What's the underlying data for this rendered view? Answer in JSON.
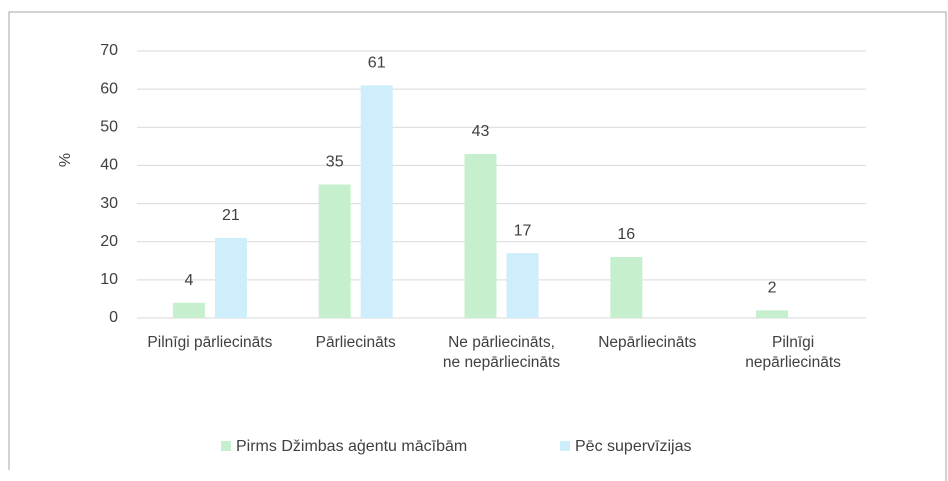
{
  "chart_data": {
    "type": "bar",
    "categories": [
      "Pilnīgi pārliecināts",
      "Pārliecināts",
      "Ne pārliecināts, ne nepārliecināts",
      "Nepārliecināts",
      "Pilnīgi nepārliecināts"
    ],
    "series": [
      {
        "name": "Pirms Džimbas aģentu mācībām",
        "color": "#c6efce",
        "values": [
          4,
          35,
          43,
          16,
          2
        ]
      },
      {
        "name": "Pēc supervīzijas",
        "color": "#cdeefa",
        "values": [
          21,
          61,
          17,
          null,
          null
        ]
      }
    ],
    "ylabel": "%",
    "ylim": [
      0,
      70
    ],
    "yticks": [
      0,
      10,
      20,
      30,
      40,
      50,
      60,
      70
    ],
    "grid": true,
    "legend": "bottom"
  }
}
